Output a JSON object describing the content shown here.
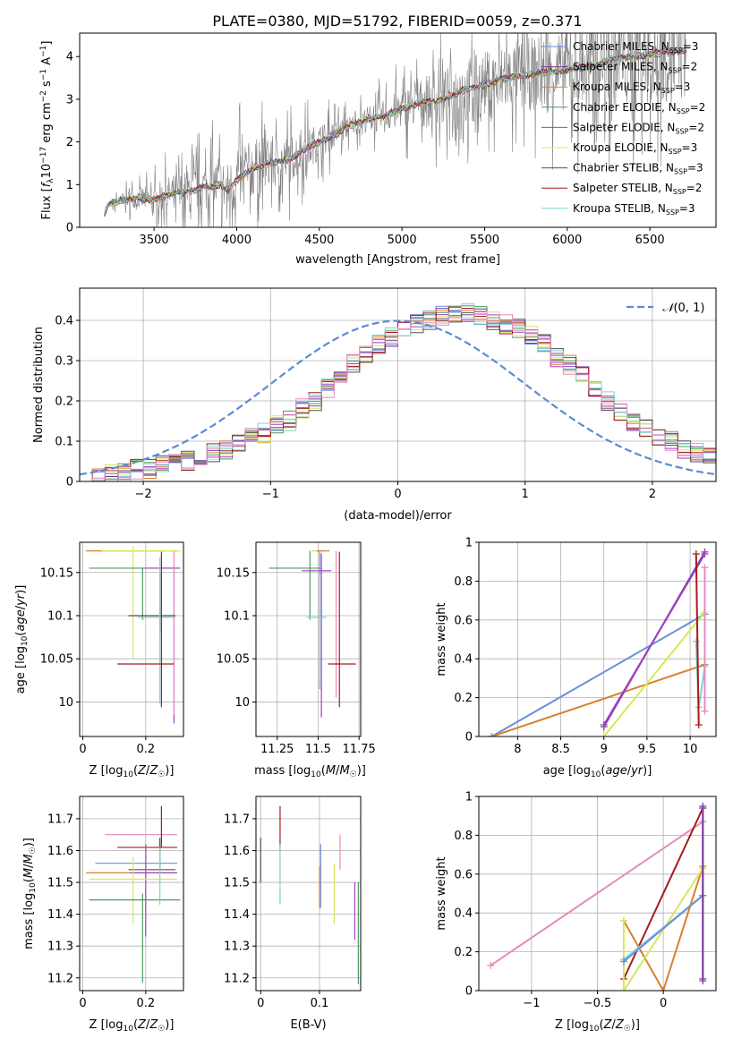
{
  "figure": {
    "title": "PLATE=0380, MJD=51792, FIBERID=0059, z=0.371"
  },
  "colors": {
    "Chabrier MILES": "#6a8fdb",
    "Salpeter MILES": "#7a3f9e",
    "Kroupa MILES": "#d7812f",
    "Chabrier ELODIE": "#4c9a5f",
    "Salpeter ELODIE": "#a23fc2",
    "Kroupa ELODIE": "#d6e85a",
    "Chabrier STELIB": "#505050",
    "Salpeter STELIB": "#a61c1c",
    "Kroupa STELIB": "#7fd3d3",
    "pink": "#e58ac0",
    "data": "#808080",
    "normal": "#5b8bd6"
  },
  "chart_data": [
    {
      "id": "spectrum",
      "type": "line",
      "title": "PLATE=0380, MJD=51792, FIBERID=0059, z=0.371",
      "xlabel": "wavelength [Angstrom, rest frame]",
      "ylabel": "Flux [f_λ 10^-17 erg cm^-2 s^-1 A^-1]",
      "xlim": [
        3050,
        6900
      ],
      "ylim": [
        0,
        4.55
      ],
      "xticks": [
        3500,
        4000,
        4500,
        5000,
        5500,
        6000,
        6500
      ],
      "yticks": [
        0,
        1,
        2,
        3,
        4
      ],
      "grid": false,
      "legend_position": "top-right",
      "legend": [
        {
          "name": "Chabrier MILES",
          "nssp": "3"
        },
        {
          "name": "Salpeter MILES",
          "nssp": "2"
        },
        {
          "name": "Kroupa MILES",
          "nssp": "3"
        },
        {
          "name": "Chabrier ELODIE",
          "nssp": "2"
        },
        {
          "name": "Salpeter ELODIE",
          "nssp": "2"
        },
        {
          "name": "Kroupa ELODIE",
          "nssp": "3"
        },
        {
          "name": "Chabrier STELIB",
          "nssp": "3"
        },
        {
          "name": "Salpeter STELIB",
          "nssp": "2"
        },
        {
          "name": "Kroupa STELIB",
          "nssp": "3"
        }
      ],
      "continuum": [
        [
          3200,
          0.35
        ],
        [
          3230,
          0.55
        ],
        [
          3300,
          0.62
        ],
        [
          3400,
          0.7
        ],
        [
          3500,
          0.62
        ],
        [
          3600,
          0.78
        ],
        [
          3700,
          0.82
        ],
        [
          3800,
          0.95
        ],
        [
          3900,
          1.0
        ],
        [
          3950,
          0.85
        ],
        [
          4000,
          1.1
        ],
        [
          4100,
          1.4
        ],
        [
          4200,
          1.5
        ],
        [
          4300,
          1.55
        ],
        [
          4400,
          1.8
        ],
        [
          4500,
          2.0
        ],
        [
          4600,
          2.2
        ],
        [
          4700,
          2.4
        ],
        [
          4800,
          2.55
        ],
        [
          4900,
          2.6
        ],
        [
          5000,
          2.8
        ],
        [
          5100,
          2.9
        ],
        [
          5200,
          2.95
        ],
        [
          5300,
          3.1
        ],
        [
          5400,
          3.25
        ],
        [
          5500,
          3.35
        ],
        [
          5600,
          3.45
        ],
        [
          5700,
          3.55
        ],
        [
          5800,
          3.6
        ],
        [
          5900,
          3.65
        ],
        [
          6000,
          3.7
        ],
        [
          6100,
          3.75
        ],
        [
          6200,
          3.85
        ],
        [
          6300,
          3.95
        ],
        [
          6400,
          4.0
        ],
        [
          6500,
          4.05
        ],
        [
          6600,
          4.1
        ],
        [
          6700,
          4.15
        ]
      ],
      "noise_envelope": [
        [
          3200,
          0.1
        ],
        [
          3500,
          0.9
        ],
        [
          3700,
          1.3
        ],
        [
          4000,
          1.8
        ],
        [
          4300,
          1.5
        ],
        [
          4700,
          0.6
        ],
        [
          5000,
          1.2
        ],
        [
          5300,
          1.8
        ],
        [
          5800,
          2.2
        ],
        [
          6300,
          2.8
        ],
        [
          6700,
          3.0
        ]
      ]
    },
    {
      "id": "residuals",
      "type": "bar",
      "xlabel": "(data-model)/error",
      "ylabel": "Normed distribution",
      "xlim": [
        -2.5,
        2.5
      ],
      "ylim": [
        0,
        0.48
      ],
      "xticks": [
        -2,
        -1,
        0,
        1,
        2
      ],
      "yticks": [
        0.0,
        0.1,
        0.2,
        0.3,
        0.4
      ],
      "grid": true,
      "legend_position": "top-right",
      "legend_label": "N(0,1)",
      "bin_edges_start": -2.5,
      "bin_width": 0.1,
      "base_hist": [
        0.01,
        0.01,
        0.02,
        0.02,
        0.03,
        0.03,
        0.04,
        0.05,
        0.05,
        0.06,
        0.07,
        0.08,
        0.1,
        0.11,
        0.12,
        0.14,
        0.15,
        0.18,
        0.2,
        0.23,
        0.26,
        0.29,
        0.32,
        0.34,
        0.36,
        0.38,
        0.39,
        0.4,
        0.41,
        0.42,
        0.42,
        0.41,
        0.4,
        0.39,
        0.38,
        0.36,
        0.34,
        0.31,
        0.29,
        0.26,
        0.23,
        0.2,
        0.17,
        0.15,
        0.13,
        0.11,
        0.1,
        0.08,
        0.07,
        0.06,
        0.05,
        0.05,
        0.04,
        0.04,
        0.03,
        0.03,
        0.02,
        0.02,
        0.04,
        0.04
      ],
      "normal_curve": {
        "mean": 0,
        "sigma": 1
      }
    },
    {
      "id": "age_vs_Z",
      "type": "scatter",
      "xlabel": "Z [log10(Z/Z☉)]",
      "ylabel": "age  [log10(age/yr)]",
      "xlim": [
        -0.01,
        0.32
      ],
      "ylim": [
        9.96,
        10.185
      ],
      "xticks": [
        0.0,
        0.2
      ],
      "yticks": [
        10.0,
        10.05,
        10.1,
        10.15
      ],
      "grid": true,
      "errorbars": [
        {
          "series": "Kroupa MILES",
          "x": 0.16,
          "y": 10.175,
          "xerr": [
            0.15,
            0.14
          ],
          "yerr": [
            0.0,
            0.0
          ]
        },
        {
          "series": "Kroupa ELODIE",
          "x": 0.16,
          "y": 10.175,
          "xerr": [
            0.1,
            0.15
          ],
          "yerr": [
            0.125,
            0.005
          ]
        },
        {
          "series": "Chabrier ELODIE",
          "x": 0.19,
          "y": 10.155,
          "xerr": [
            0.17,
            0.12
          ],
          "yerr": [
            0.06,
            0.0
          ]
        },
        {
          "series": "Salpeter ELODIE",
          "x": 0.29,
          "y": 10.155,
          "xerr": [
            0.09,
            0.02
          ],
          "yerr": [
            0.18,
            0.005
          ]
        },
        {
          "series": "pink",
          "x": 0.29,
          "y": 10.155,
          "xerr": [
            0.0,
            0.0
          ],
          "yerr": [
            0.17,
            0.02
          ]
        },
        {
          "series": "Chabrier STELIB",
          "x": 0.245,
          "y": 10.1,
          "xerr": [
            0.1,
            0.05
          ],
          "yerr": [
            0.02,
            0.05
          ]
        },
        {
          "series": "Kroupa STELIB",
          "x": 0.245,
          "y": 10.098,
          "xerr": [
            0.07,
            0.05
          ],
          "yerr": [
            0.1,
            0.07
          ]
        },
        {
          "series": "Salpeter STELIB",
          "x": 0.25,
          "y": 10.044,
          "xerr": [
            0.14,
            0.04
          ],
          "yerr": [
            0.05,
            0.13
          ]
        }
      ]
    },
    {
      "id": "age_vs_mass",
      "type": "scatter",
      "xlabel": "mass [log10(M/M☉)]",
      "ylabel": "",
      "xlim": [
        11.12,
        11.76
      ],
      "ylim": [
        9.96,
        10.185
      ],
      "xticks": [
        11.25,
        11.5,
        11.75
      ],
      "yticks": [
        10.0,
        10.05,
        10.1,
        10.15
      ],
      "grid": true,
      "errorbars": [
        {
          "series": "Kroupa ELODIE",
          "x": 11.53,
          "y": 10.175,
          "xerr": [
            0.07,
            0.02
          ],
          "yerr": [
            0.0,
            0.0
          ]
        },
        {
          "series": "Kroupa MILES",
          "x": 11.55,
          "y": 10.175,
          "xerr": [
            0.06,
            0.02
          ],
          "yerr": [
            0.0,
            0.0
          ]
        },
        {
          "series": "Chabrier ELODIE",
          "x": 11.45,
          "y": 10.155,
          "xerr": [
            0.25,
            0.07
          ],
          "yerr": [
            0.06,
            0.02
          ]
        },
        {
          "series": "Salpeter ELODIE",
          "x": 11.52,
          "y": 10.152,
          "xerr": [
            0.12,
            0.06
          ],
          "yerr": [
            0.17,
            0.02
          ]
        },
        {
          "series": "pink",
          "x": 11.61,
          "y": 10.155,
          "xerr": [
            0.0,
            0.0
          ],
          "yerr": [
            0.15,
            0.02
          ]
        },
        {
          "series": "Chabrier MILES",
          "x": 11.51,
          "y": 10.155,
          "xerr": [
            0.0,
            0.0
          ],
          "yerr": [
            0.14,
            0.02
          ]
        },
        {
          "series": "Kroupa STELIB",
          "x": 11.51,
          "y": 10.098,
          "xerr": [
            0.08,
            0.04
          ],
          "yerr": [
            0.08,
            0.05
          ]
        },
        {
          "series": "Salpeter STELIB",
          "x": 11.63,
          "y": 10.044,
          "xerr": [
            0.07,
            0.1
          ],
          "yerr": [
            0.05,
            0.13
          ]
        }
      ]
    },
    {
      "id": "massweight_vs_age",
      "type": "line",
      "xlabel": "age  [log10(age/yr)]",
      "ylabel": "mass weight",
      "xlim": [
        7.55,
        10.3
      ],
      "ylim": [
        0,
        1.0
      ],
      "xticks": [
        8.0,
        8.5,
        9.0,
        9.5,
        10.0
      ],
      "yticks": [
        0.0,
        0.2,
        0.4,
        0.6,
        0.8,
        1.0
      ],
      "grid": true,
      "series": [
        {
          "name": "Chabrier MILES",
          "x": [
            7.7,
            10.17
          ],
          "y": [
            0.0,
            0.63
          ]
        },
        {
          "name": "Kroupa MILES",
          "x": [
            7.7,
            10.17
          ],
          "y": [
            0.0,
            0.37
          ]
        },
        {
          "name": "Kroupa ELODIE",
          "x": [
            9.0,
            10.17
          ],
          "y": [
            0.0,
            0.64
          ]
        },
        {
          "name": "Salpeter MILES",
          "x": [
            9.0,
            10.17
          ],
          "y": [
            0.05,
            0.95
          ]
        },
        {
          "name": "Salpeter ELODIE",
          "x": [
            9.0,
            10.17
          ],
          "y": [
            0.06,
            0.94
          ]
        },
        {
          "name": "Kroupa STELIB",
          "x": [
            10.07,
            10.1,
            10.17
          ],
          "y": [
            0.49,
            0.15,
            0.36
          ]
        },
        {
          "name": "Salpeter STELIB",
          "x": [
            10.07,
            10.1
          ],
          "y": [
            0.94,
            0.06
          ]
        },
        {
          "name": "pink",
          "x": [
            10.17,
            10.17
          ],
          "y": [
            0.87,
            0.13
          ]
        }
      ]
    },
    {
      "id": "mass_vs_Z",
      "type": "scatter",
      "xlabel": "Z [log10(Z/Z☉)]",
      "ylabel": "mass [log10(M/M☉)]",
      "xlim": [
        -0.01,
        0.32
      ],
      "ylim": [
        11.16,
        11.77
      ],
      "xticks": [
        0.0,
        0.2
      ],
      "yticks": [
        11.2,
        11.3,
        11.4,
        11.5,
        11.6,
        11.7
      ],
      "grid": true,
      "errorbars": [
        {
          "series": "pink",
          "x": 0.18,
          "y": 11.65,
          "xerr": [
            0.11,
            0.12
          ],
          "yerr": [
            0.0,
            0.0
          ]
        },
        {
          "series": "Salpeter STELIB",
          "x": 0.25,
          "y": 11.61,
          "xerr": [
            0.14,
            0.05
          ],
          "yerr": [
            0.0,
            0.13
          ]
        },
        {
          "series": "Chabrier MILES",
          "x": 0.18,
          "y": 11.56,
          "xerr": [
            0.14,
            0.12
          ],
          "yerr": [
            0.0,
            0.0
          ]
        },
        {
          "series": "Chabrier STELIB",
          "x": 0.245,
          "y": 11.54,
          "xerr": [
            0.1,
            0.05
          ],
          "yerr": [
            0.0,
            0.1
          ]
        },
        {
          "series": "Kroupa MILES",
          "x": 0.16,
          "y": 11.53,
          "xerr": [
            0.15,
            0.14
          ],
          "yerr": [
            0.0,
            0.0
          ]
        },
        {
          "series": "Salpeter ELODIE",
          "x": 0.2,
          "y": 11.53,
          "xerr": [
            0.05,
            0.1
          ],
          "yerr": [
            0.2,
            0.09
          ]
        },
        {
          "series": "Kroupa ELODIE",
          "x": 0.16,
          "y": 11.51,
          "xerr": [
            0.14,
            0.14
          ],
          "yerr": [
            0.14,
            0.07
          ]
        },
        {
          "series": "Chabrier ELODIE",
          "x": 0.19,
          "y": 11.445,
          "xerr": [
            0.17,
            0.12
          ],
          "yerr": [
            0.26,
            0.02
          ]
        },
        {
          "series": "Kroupa STELIB",
          "x": 0.245,
          "y": 11.54,
          "xerr": [
            0.0,
            0.0
          ],
          "yerr": [
            0.11,
            0.07
          ]
        }
      ]
    },
    {
      "id": "mass_vs_ebv",
      "type": "scatter",
      "xlabel": "E(B-V)",
      "ylabel": "",
      "xlim": [
        -0.008,
        0.17
      ],
      "ylim": [
        11.16,
        11.77
      ],
      "xticks": [
        0.0,
        0.1
      ],
      "yticks": [
        11.2,
        11.3,
        11.4,
        11.5,
        11.6,
        11.7
      ],
      "grid": true,
      "errorbars": [
        {
          "series": "Salpeter STELIB",
          "x": 0.033,
          "y": 11.66,
          "xerr": [
            0,
            0
          ],
          "yerr": [
            0.06,
            0.08
          ]
        },
        {
          "series": "Kroupa STELIB",
          "x": 0.033,
          "y": 11.55,
          "xerr": [
            0,
            0
          ],
          "yerr": [
            0.12,
            0.07
          ]
        },
        {
          "series": "Chabrier STELIB",
          "x": 0.0,
          "y": 11.58,
          "xerr": [
            0,
            0
          ],
          "yerr": [
            0.08,
            0.06
          ]
        },
        {
          "series": "Chabrier MILES",
          "x": 0.102,
          "y": 11.55,
          "xerr": [
            0,
            0
          ],
          "yerr": [
            0.13,
            0.07
          ]
        },
        {
          "series": "Kroupa MILES",
          "x": 0.1,
          "y": 11.5,
          "xerr": [
            0,
            0
          ],
          "yerr": [
            0.08,
            0.05
          ]
        },
        {
          "series": "pink",
          "x": 0.135,
          "y": 11.6,
          "xerr": [
            0,
            0
          ],
          "yerr": [
            0.06,
            0.05
          ]
        },
        {
          "series": "Kroupa ELODIE",
          "x": 0.125,
          "y": 11.46,
          "xerr": [
            0,
            0
          ],
          "yerr": [
            0.09,
            0.1
          ]
        },
        {
          "series": "Salpeter ELODIE",
          "x": 0.16,
          "y": 11.43,
          "xerr": [
            0,
            0
          ],
          "yerr": [
            0.11,
            0.07
          ]
        },
        {
          "series": "Chabrier ELODIE",
          "x": 0.166,
          "y": 11.33,
          "xerr": [
            0,
            0
          ],
          "yerr": [
            0.15,
            0.17
          ]
        }
      ]
    },
    {
      "id": "massweight_vs_Z",
      "type": "line",
      "xlabel": "Z [log10(Z/Z☉)]",
      "ylabel": "mass weight",
      "xlim": [
        -1.4,
        0.4
      ],
      "ylim": [
        0,
        1.0
      ],
      "xticks": [
        -1.0,
        -0.5,
        0.0
      ],
      "yticks": [
        0.0,
        0.2,
        0.4,
        0.6,
        0.8,
        1.0
      ],
      "grid": true,
      "series": [
        {
          "name": "pink",
          "x": [
            -1.31,
            0.3
          ],
          "y": [
            0.13,
            0.87
          ]
        },
        {
          "name": "Salpeter STELIB",
          "x": [
            -0.3,
            0.3
          ],
          "y": [
            0.06,
            0.94
          ]
        },
        {
          "name": "Kroupa MILES",
          "x": [
            -0.3,
            0.0,
            0.3
          ],
          "y": [
            0.36,
            0.0,
            0.64
          ]
        },
        {
          "name": "Kroupa ELODIE",
          "x": [
            -0.3,
            -0.3,
            0.3
          ],
          "y": [
            0.36,
            0.0,
            0.63
          ]
        },
        {
          "name": "Kroupa STELIB",
          "x": [
            -0.3,
            0.3
          ],
          "y": [
            0.16,
            0.49
          ]
        },
        {
          "name": "Chabrier MILES",
          "x": [
            -0.3,
            0.3
          ],
          "y": [
            0.15,
            0.49
          ]
        },
        {
          "name": "Salpeter ELODIE",
          "x": [
            0.3,
            0.3
          ],
          "y": [
            0.05,
            0.94
          ]
        },
        {
          "name": "Salpeter MILES",
          "x": [
            0.3,
            0.3
          ],
          "y": [
            0.06,
            0.95
          ]
        }
      ]
    }
  ]
}
